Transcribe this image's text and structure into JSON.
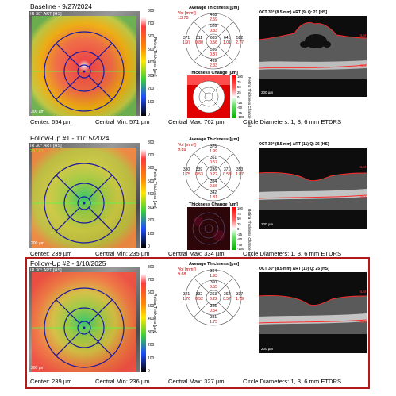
{
  "colors": {
    "red_value": "#c00000",
    "highlight_border": "#b31b1b",
    "grid_line": "#1a1aa0"
  },
  "colorbar_ticks": [
    "800",
    "700",
    "600",
    "500",
    "400",
    "300",
    "200",
    "100",
    "0"
  ],
  "colorbar_label": "Retina Thickness [µm]",
  "change_ticks": [
    "100",
    "75",
    "50",
    "25",
    "0",
    "-25",
    "-50",
    "-75",
    "-100"
  ],
  "change_label": "Retina Thickness Change [µm]",
  "sections": [
    {
      "title": "Baseline - 9/27/2024",
      "fundus_label": "IR 30° ART [HS]",
      "fundus_scale": "200 µm",
      "center": "Center: 654 µm",
      "central_min": "Central Min: 571 µm",
      "central_max": "Central Max: 762 µm",
      "circle": "Circle Diameters:  1, 3, 6 mm ETDRS",
      "avg_title": "Average Thickness [µm]",
      "vol_label": "Vol [mm³]",
      "vol_value": "13.70",
      "grid": {
        "outer_sup": [
          "488",
          "2.59"
        ],
        "inner_sup": [
          "526",
          "0.83"
        ],
        "outer_temp": [
          "371",
          "1.97"
        ],
        "inner_temp": [
          "511",
          "0.80"
        ],
        "center": [
          "685",
          "0.56"
        ],
        "inner_nas": [
          "641",
          "1.01"
        ],
        "outer_nas": [
          "522",
          "2.77"
        ],
        "inner_inf": [
          "556",
          "0.87"
        ],
        "outer_inf": [
          "439",
          "2.33"
        ]
      },
      "change_title": "Thickness Change [µm]",
      "oct_title": "OCT 30° (8.5 mm) ART (9) Q: 21 [HS]",
      "oct_scale": "200 µm",
      "ilm": "ILM",
      "bm": "BM"
    },
    {
      "title": "Follow-Up #1 - 11/15/2024",
      "fundus_label": "IR 30° ART [HS]",
      "fundus_badge": "29 / 61",
      "fundus_scale": "200 µm",
      "center": "Center: 239 µm",
      "central_min": "Central Min: 235 µm",
      "central_max": "Central Max: 334 µm",
      "circle": "Circle Diameters:  1, 3, 6 mm ETDRS",
      "avg_title": "Average Thickness [µm]",
      "vol_label": "Vol [mm³]",
      "vol_value": "9.89",
      "grid": {
        "outer_sup": [
          "375",
          "1.99"
        ],
        "inner_sup": [
          "361",
          "0.57"
        ],
        "outer_temp": [
          "330",
          "1.75"
        ],
        "inner_temp": [
          "339",
          "0.53"
        ],
        "center": [
          "286",
          "0.22"
        ],
        "inner_nas": [
          "371",
          "0.58"
        ],
        "outer_nas": [
          "353",
          "1.87"
        ],
        "inner_inf": [
          "354",
          "0.56"
        ],
        "outer_inf": [
          "342",
          "1.81"
        ]
      },
      "change_title": "Thickness Change [µm]",
      "oct_title": "OCT 30° (8.5 mm) ART (11) Q: 26 [HS]",
      "oct_scale": "200 µm",
      "ilm": "ILM",
      "bm": "BM"
    },
    {
      "title": "Follow-Up #2 - 1/10/2025",
      "fundus_label": "IR 30° ART [HS]",
      "fundus_scale": "200 µm",
      "center": "Center: 239 µm",
      "central_min": "Central Min: 236 µm",
      "central_max": "Central Max: 327 µm",
      "circle": "Circle Diameters:  1, 3, 6 mm ETDRS",
      "avg_title": "Average Thickness [µm]",
      "vol_label": "Vol [mm³]",
      "vol_value": "9.68",
      "grid": {
        "outer_sup": [
          "364",
          "1.93"
        ],
        "inner_sup": [
          "360",
          "0.55"
        ],
        "outer_temp": [
          "321",
          "1.70"
        ],
        "inner_temp": [
          "332",
          "0.52"
        ],
        "center": [
          "263",
          "0.22"
        ],
        "inner_nas": [
          "362",
          "0.57"
        ],
        "outer_nas": [
          "337",
          "1.79"
        ],
        "inner_inf": [
          "345",
          "0.54"
        ],
        "outer_inf": [
          "331",
          "1.75"
        ]
      },
      "oct_title": "OCT 30° (8.5 mm) ART (10) Q: 25 [HS]",
      "oct_scale": "200 µm",
      "ilm": "ILM",
      "bm": "BM"
    }
  ]
}
